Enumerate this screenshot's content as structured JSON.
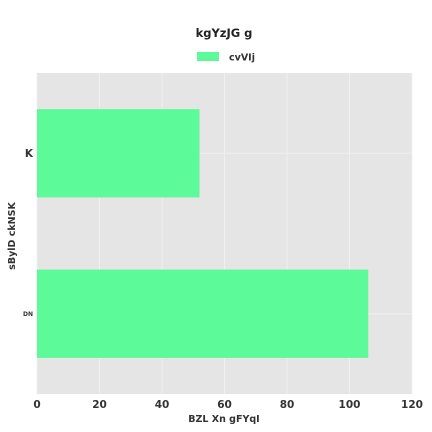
{
  "chart_data": {
    "type": "bar",
    "orientation": "horizontal",
    "title": "kgYzJG g",
    "xlabel": "BZL  Xn gFYqI",
    "ylabel": "sBylD ckNSK",
    "categories": [
      "K",
      "DN"
    ],
    "series": [
      {
        "name": "cvVIj",
        "values": [
          52,
          106
        ]
      }
    ],
    "xlim": [
      0,
      120
    ],
    "xticks": [
      0,
      20,
      40,
      60,
      80,
      100,
      120
    ],
    "grid": true,
    "legend_position": "top-center",
    "colors": {
      "bar": "#5cfa99",
      "plot_background": "#e5e5e5",
      "grid": "#f0f0f0"
    }
  }
}
